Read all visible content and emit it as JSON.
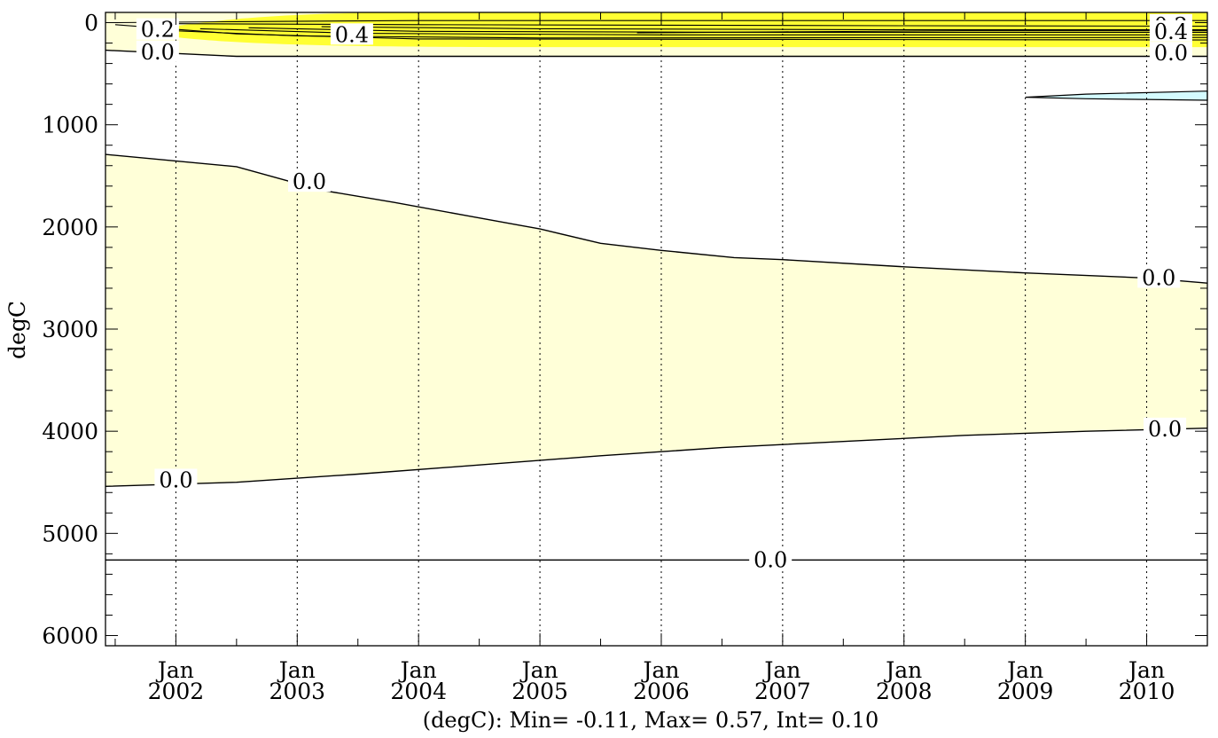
{
  "chart_data": {
    "type": "contour",
    "title": "",
    "ylabel": "degC",
    "xlabel": "",
    "footer": "(degC): Min= -0.11, Max= 0.57, Int= 0.10",
    "ylim": [
      6100,
      -100
    ],
    "y_ticks": [
      0,
      1000,
      2000,
      3000,
      4000,
      5000,
      6000
    ],
    "y_tick_labels": [
      "0",
      "1000",
      "2000",
      "3000",
      "4000",
      "5000",
      "6000"
    ],
    "x_range": [
      2001.42,
      2010.5
    ],
    "x_ticks": [
      2002,
      2003,
      2004,
      2005,
      2006,
      2007,
      2008,
      2009,
      2010
    ],
    "x_tick_month": "Jan",
    "x_tick_years": [
      "2002",
      "2003",
      "2004",
      "2005",
      "2006",
      "2007",
      "2008",
      "2009",
      "2010"
    ],
    "fill_colors": {
      "positive_weak": "#ffffd8",
      "positive_strong": "#ffff33",
      "negative": "#d4fbff"
    },
    "zero_upper_boundary": [
      [
        2001.42,
        1290
      ],
      [
        2002.5,
        1410
      ],
      [
        2003.2,
        1640
      ],
      [
        2003.8,
        1760
      ],
      [
        2004.4,
        1890
      ],
      [
        2005,
        2020
      ],
      [
        2005.5,
        2160
      ],
      [
        2006,
        2230
      ],
      [
        2006.6,
        2300
      ],
      [
        2007,
        2320
      ],
      [
        2008,
        2390
      ],
      [
        2009,
        2450
      ],
      [
        2010,
        2500
      ],
      [
        2010.5,
        2550
      ]
    ],
    "zero_lower_boundary": [
      [
        2001.42,
        4540
      ],
      [
        2002.5,
        4500
      ],
      [
        2003.5,
        4420
      ],
      [
        2004.5,
        4330
      ],
      [
        2005.5,
        4240
      ],
      [
        2006,
        4200
      ],
      [
        2006.5,
        4160
      ],
      [
        2007.5,
        4100
      ],
      [
        2008.5,
        4040
      ],
      [
        2009.5,
        4000
      ],
      [
        2010.5,
        3970
      ]
    ],
    "zero_bottom_line": 5260,
    "negative_tongue": [
      [
        2009.0,
        730
      ],
      [
        2009.5,
        700
      ],
      [
        2010.5,
        670
      ],
      [
        2010.5,
        760
      ],
      [
        2009.5,
        745
      ]
    ],
    "contour_labels": [
      {
        "text": "0.2",
        "x": 2001.85,
        "y": 70
      },
      {
        "text": "0.4",
        "x": 2003.45,
        "y": 120
      },
      {
        "text": "0.0",
        "x": 2001.85,
        "y": 290
      },
      {
        "text": "0.2",
        "x": 2010.2,
        "y": 30
      },
      {
        "text": "0.4",
        "x": 2010.2,
        "y": 90
      },
      {
        "text": "0.0",
        "x": 2010.2,
        "y": 300
      },
      {
        "text": "0.0",
        "x": 2003.1,
        "y": 1560
      },
      {
        "text": "0.0",
        "x": 2010.1,
        "y": 2500
      },
      {
        "text": "0.0",
        "x": 2002.0,
        "y": 4480
      },
      {
        "text": "0.0",
        "x": 2010.15,
        "y": 3980
      },
      {
        "text": "0.0",
        "x": 2006.9,
        "y": 5260
      }
    ]
  }
}
